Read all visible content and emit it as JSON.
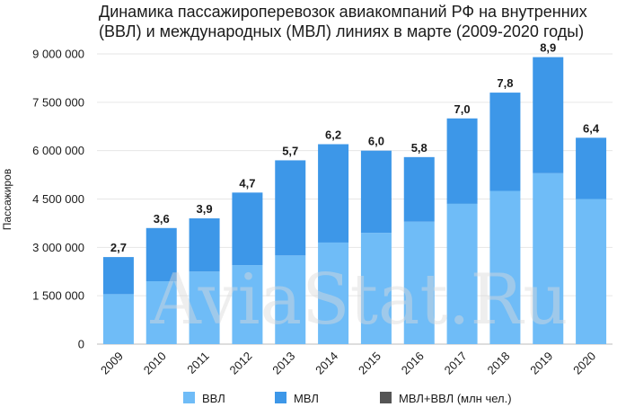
{
  "chart_data": {
    "type": "bar",
    "stacked": true,
    "title": "Динамика пассажироперевозок авиакомпаний РФ на внутренних (ВВЛ) и международных (МВЛ) линиях в марте (2009-2020 годы)",
    "ylabel": "Пассажиров",
    "xlabel": "",
    "ylim": [
      0,
      9000000
    ],
    "yticks": [
      0,
      1500000,
      3000000,
      4500000,
      6000000,
      7500000,
      9000000
    ],
    "ytick_labels": [
      "0",
      "1 500 000",
      "3 000 000",
      "4 500 000",
      "6 000 000",
      "7 500 000",
      "9 000 000"
    ],
    "categories": [
      "2009",
      "2010",
      "2011",
      "2012",
      "2013",
      "2014",
      "2015",
      "2016",
      "2017",
      "2018",
      "2019",
      "2020"
    ],
    "series": [
      {
        "name": "ВВЛ",
        "color": "#6fbcf7",
        "values": [
          1550000,
          1950000,
          2250000,
          2450000,
          2750000,
          3150000,
          3450000,
          3800000,
          4350000,
          4750000,
          5300000,
          4500000
        ]
      },
      {
        "name": "МВЛ",
        "color": "#3d97e8",
        "values": [
          1150000,
          1650000,
          1650000,
          2250000,
          2950000,
          3050000,
          2550000,
          2000000,
          2650000,
          3050000,
          3600000,
          1900000
        ]
      }
    ],
    "totals_series": {
      "name": "МВЛ+ВВЛ (млн чел.)",
      "color": "#555555",
      "labels": [
        "2,7",
        "3,6",
        "3,9",
        "4,7",
        "5,7",
        "6,2",
        "6,0",
        "5,8",
        "7,0",
        "7,8",
        "8,9",
        "6,4"
      ]
    },
    "grid": "horizontal",
    "legend": "bottom",
    "watermark": "AviaStat.Ru"
  }
}
